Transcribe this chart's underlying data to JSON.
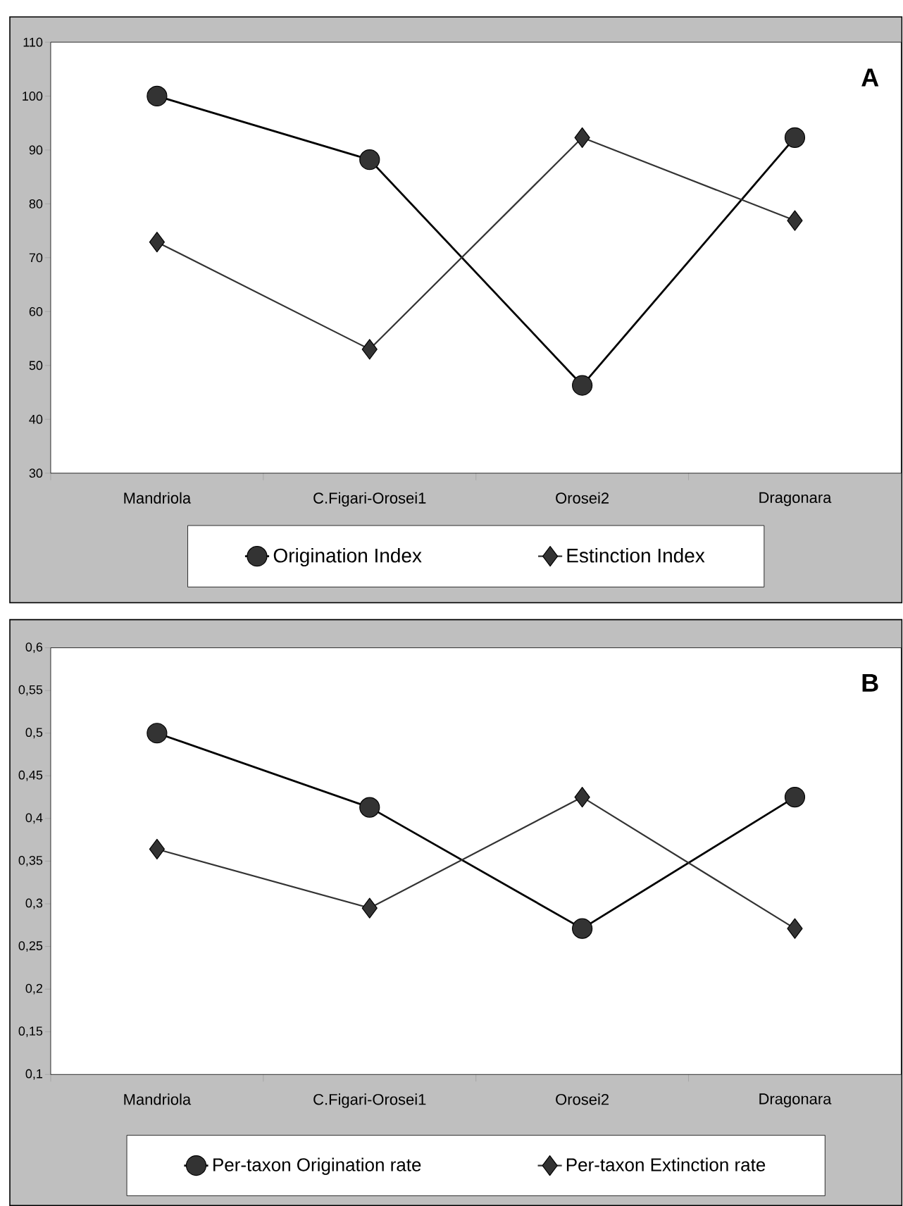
{
  "chart_data": [
    {
      "type": "line",
      "annotations": [
        "A"
      ],
      "categories": [
        "Mandriola",
        "C.Figari-Orosei1",
        "Orosei2",
        "Dragonara"
      ],
      "series": [
        {
          "name": "Origination Index",
          "color": "#000000",
          "marker": "circle",
          "values": [
            100,
            88.2,
            46.3,
            92.3
          ]
        },
        {
          "name": "Estinction Index",
          "color": "#333333",
          "marker": "diamond",
          "values": [
            72.9,
            53,
            92.3,
            76.9
          ]
        }
      ],
      "ylim": [
        30,
        110
      ],
      "yticks": [
        30,
        40,
        50,
        60,
        70,
        80,
        90,
        100,
        110
      ],
      "legend": "bottom",
      "grid": false,
      "line_style": "solid"
    },
    {
      "type": "line",
      "annotations": [
        "B"
      ],
      "categories": [
        "Mandriola",
        "C.Figari-Orosei1",
        "Orosei2",
        "Dragonara"
      ],
      "series": [
        {
          "name": "Per-taxon  Origination rate",
          "color": "#000000",
          "marker": "circle",
          "values": [
            0.5,
            0.413,
            0.271,
            0.425
          ]
        },
        {
          "name": "Per-taxon  Extinction rate",
          "color": "#333333",
          "marker": "diamond",
          "values": [
            0.364,
            0.295,
            0.425,
            0.271
          ]
        }
      ],
      "ylim": [
        0.1,
        0.6
      ],
      "yticks": [
        {
          "value": 0.1,
          "label": "0,1"
        },
        {
          "value": 0.15,
          "label": "0,15"
        },
        {
          "value": 0.2,
          "label": "0,2"
        },
        {
          "value": 0.25,
          "label": "0,25"
        },
        {
          "value": 0.3,
          "label": "0,3"
        },
        {
          "value": 0.35,
          "label": "0,35"
        },
        {
          "value": 0.4,
          "label": "0,4"
        },
        {
          "value": 0.45,
          "label": "0,45"
        },
        {
          "value": 0.5,
          "label": "0,5"
        },
        {
          "value": 0.55,
          "label": "0,55"
        },
        {
          "value": 0.6,
          "label": "0,6"
        }
      ],
      "legend": "bottom",
      "grid": false,
      "line_style": "solid"
    }
  ]
}
